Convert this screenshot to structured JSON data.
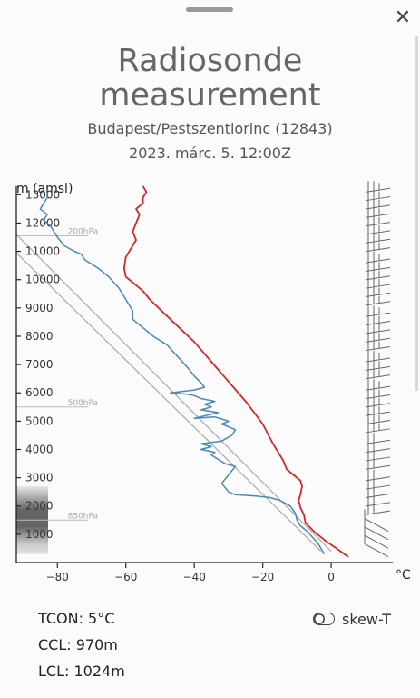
{
  "header": {
    "title_line1": "Radiosonde",
    "title_line2": "measurement",
    "station": "Budapest/Pestszentlorinc (12843)",
    "datetime": "2023. márc. 5. 12:00Z",
    "close_icon": "close-icon"
  },
  "stats": {
    "tcon": "TCON: 5°C",
    "ccl": "CCL: 970m",
    "lcl": "LCL: 1024m"
  },
  "toggle": {
    "label": "skew-T",
    "state": "off"
  },
  "chart_data": {
    "type": "line",
    "ylabel": "m (amsl)",
    "xlabel": "°C",
    "xlim": [
      -92,
      18
    ],
    "ylim": [
      0,
      13300
    ],
    "x_ticks": [
      -80,
      -60,
      -40,
      -20,
      0
    ],
    "x_tick_labels": [
      "−80",
      "−60",
      "−40",
      "−20",
      "0"
    ],
    "y_ticks": [
      1000,
      2000,
      3000,
      4000,
      5000,
      6000,
      7000,
      8000,
      9000,
      10000,
      11000,
      12000,
      13000
    ],
    "pressure_levels": [
      {
        "label": "850hPa",
        "height": 1500
      },
      {
        "label": "500hPa",
        "height": 5500
      },
      {
        "label": "200hPa",
        "height": 11550
      }
    ],
    "adiabats": [
      {
        "x": [
          -92,
          0
        ],
        "y": [
          11600,
          400
        ]
      },
      {
        "x": [
          -92,
          -3
        ],
        "y": [
          10950,
          400
        ]
      }
    ],
    "cloud_layers": [
      {
        "bottom": 300,
        "top": 2700,
        "peak_opacity": 0.6
      }
    ],
    "series": [
      {
        "color": "#d62728",
        "x": [
          5,
          1.5,
          -2,
          -5,
          -7.5,
          -8,
          -9,
          -9.5,
          -9,
          -8.5,
          -9,
          -11,
          -13,
          -14,
          -17,
          -20,
          -25,
          -30,
          -35,
          -40,
          -47,
          -53,
          -55,
          -58,
          -60,
          -60.5,
          -60,
          -58,
          -57,
          -58,
          -57,
          -56,
          -57,
          -55,
          -55,
          -54,
          -55
        ],
        "y": [
          200,
          500,
          800,
          1100,
          1400,
          1700,
          1950,
          2200,
          2400,
          2700,
          2900,
          3100,
          3300,
          3600,
          4200,
          4900,
          5700,
          6400,
          7100,
          7800,
          8600,
          9300,
          9600,
          9900,
          10100,
          10400,
          10800,
          11200,
          11400,
          11700,
          12000,
          12300,
          12500,
          12700,
          12900,
          13100,
          13300
        ]
      },
      {
        "color": "#4a88b8",
        "x": [
          -2,
          -3,
          -4,
          -5.5,
          -7,
          -9,
          -10,
          -10.5,
          -12,
          -15,
          -18,
          -22,
          -28,
          -30,
          -32,
          -30,
          -28,
          -31,
          -35,
          -34,
          -38,
          -35,
          -38,
          -32,
          -29,
          -28,
          -32,
          -30,
          -34,
          -40,
          -33,
          -38,
          -35,
          -37,
          -34,
          -38,
          -40,
          -42,
          -47,
          -40,
          -37,
          -38,
          -40,
          -42,
          -45,
          -48,
          -52,
          -55,
          -58,
          -58,
          -60,
          -62,
          -65,
          -68,
          -72,
          -73,
          -75,
          -78,
          -80,
          -81,
          -82,
          -84,
          -83,
          -85,
          -84,
          -83,
          -83
        ],
        "y": [
          300,
          500,
          700,
          900,
          1100,
          1300,
          1500,
          1750,
          2000,
          2200,
          2300,
          2350,
          2400,
          2500,
          2800,
          3100,
          3400,
          3500,
          3800,
          3900,
          4000,
          4100,
          4200,
          4300,
          4500,
          4700,
          4900,
          5000,
          5150,
          5100,
          5300,
          5400,
          5500,
          5600,
          5700,
          5800,
          5900,
          5950,
          6000,
          6100,
          6200,
          6350,
          6600,
          6900,
          7300,
          7700,
          8000,
          8300,
          8600,
          8900,
          9300,
          9700,
          10100,
          10400,
          10700,
          10900,
          11000,
          11200,
          11500,
          11700,
          11900,
          12100,
          12300,
          12500,
          12700,
          12900,
          13100
        ]
      }
    ],
    "wind_barbs_heights": [
      400,
      700,
      1000,
      1300,
      1700,
      2000,
      2300,
      2600,
      2900,
      3300,
      3600,
      3900,
      4200,
      4600,
      4900,
      5200,
      5500,
      5800,
      6100,
      6500,
      6800,
      7100,
      7500,
      7800,
      8100,
      8400,
      8700,
      9100,
      9400,
      9700,
      10000,
      10300,
      10600,
      11000,
      11300,
      11600,
      11900,
      12200,
      12500,
      12800,
      13100
    ]
  }
}
